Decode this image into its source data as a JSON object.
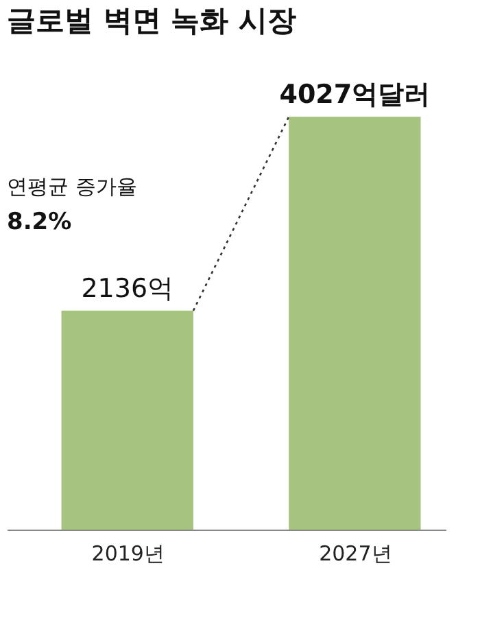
{
  "chart_data": {
    "type": "bar",
    "title": "글로벌 벽면 녹화 시장",
    "categories": [
      "2019년",
      "2027년"
    ],
    "series": [
      {
        "color": "#a6c47f",
        "values": [
          2136,
          4027
        ],
        "value_labels": [
          "2136억",
          "4027억달러"
        ]
      }
    ],
    "annotations": [
      "연평균 증가율",
      "8.2%"
    ],
    "grid": false
  }
}
